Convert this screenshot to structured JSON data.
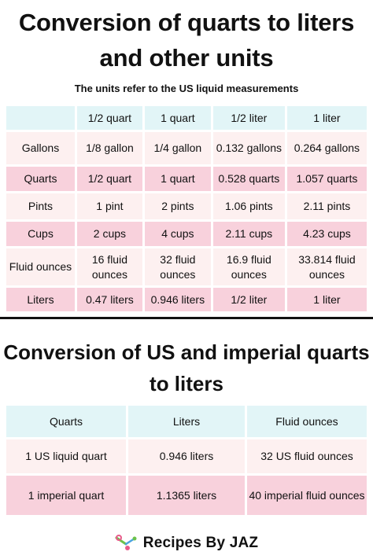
{
  "title": "Conversion of quarts to liters and other units",
  "subtitle": "The units refer to the US liquid measurements",
  "table1": {
    "headers": [
      "",
      "1/2 quart",
      "1 quart",
      "1/2 liter",
      "1 liter"
    ],
    "rows": [
      [
        "Gallons",
        "1/8 gallon",
        "1/4 gallon",
        "0.132 gallons",
        "0.264 gallons"
      ],
      [
        "Quarts",
        "1/2 quart",
        "1 quart",
        "0.528 quarts",
        "1.057 quarts"
      ],
      [
        "Pints",
        "1 pint",
        "2 pints",
        "1.06 pints",
        "2.11 pints"
      ],
      [
        "Cups",
        "2 cups",
        "4 cups",
        "2.11 cups",
        "4.23 cups"
      ],
      [
        "Fluid ounces",
        "16 fluid ounces",
        "32 fluid ounces",
        "16.9 fluid ounces",
        "33.814 fluid ounces"
      ],
      [
        "Liters",
        "0.47 liters",
        "0.946 liters",
        "1/2 liter",
        "1 liter"
      ]
    ]
  },
  "title2": "Conversion of US and imperial quarts to liters",
  "table2": {
    "headers": [
      "Quarts",
      "Liters",
      "Fluid ounces"
    ],
    "rows": [
      [
        "1 US liquid quart",
        "0.946 liters",
        "32 US fluid ounces"
      ],
      [
        "1 imperial quart",
        "1.1365 liters",
        "40 imperial fluid ounces"
      ]
    ]
  },
  "brand": {
    "name": "Recipes By JAZ",
    "icon": "whisk-logo-icon",
    "colors": {
      "green": "#6cc24a",
      "pink": "#e85a8a",
      "blue": "#4aa3df"
    }
  },
  "colors": {
    "header_bg": "#e2f5f7",
    "light_row_bg": "#fdf0f0",
    "pink_row_bg": "#f8d1dc"
  }
}
